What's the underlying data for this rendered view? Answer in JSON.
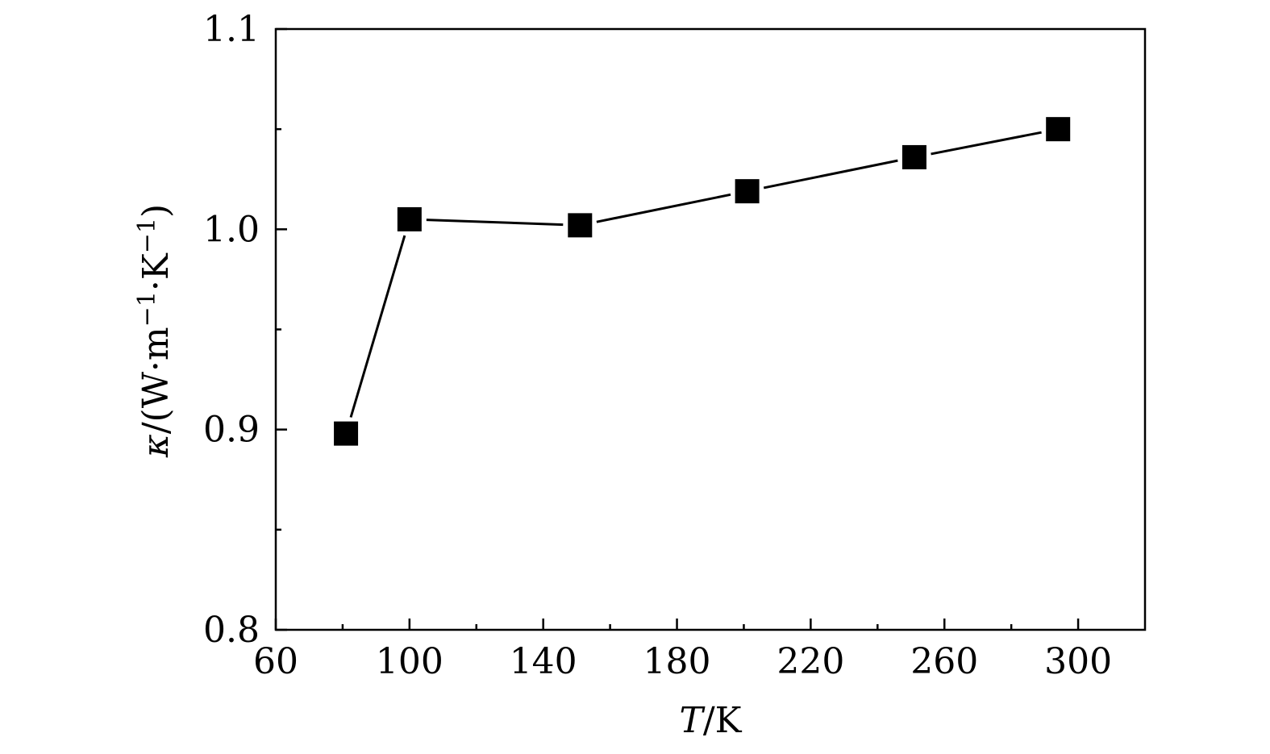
{
  "chart_data": {
    "type": "line",
    "title": "",
    "xlabel": {
      "symbol": "T",
      "unit": "/K"
    },
    "ylabel": {
      "symbol": "κ",
      "unit_prefix": "/(W·m",
      "exp1": "−1",
      "unit_mid": "·K",
      "exp2": "−1",
      "unit_suffix": ")"
    },
    "xlim": [
      60,
      320
    ],
    "ylim": [
      0.8,
      1.1
    ],
    "xticks": [
      60,
      100,
      140,
      180,
      220,
      260,
      300
    ],
    "xtick_labels": [
      "60",
      "100",
      "140",
      "180",
      "220",
      "260",
      "300"
    ],
    "xminor": [
      80,
      120,
      160,
      200,
      240,
      280
    ],
    "yticks": [
      0.8,
      0.9,
      1.0,
      1.1
    ],
    "ytick_labels": [
      "0.8",
      "0.9",
      "1.0",
      "1.1"
    ],
    "yminor": [
      0.85,
      0.95,
      1.05
    ],
    "grid": false,
    "legend": "none",
    "series": [
      {
        "marker": "square",
        "color": "#000000",
        "x": [
          81,
          100,
          151,
          201,
          251,
          294
        ],
        "y": [
          0.898,
          1.005,
          1.002,
          1.019,
          1.036,
          1.05
        ]
      }
    ]
  }
}
